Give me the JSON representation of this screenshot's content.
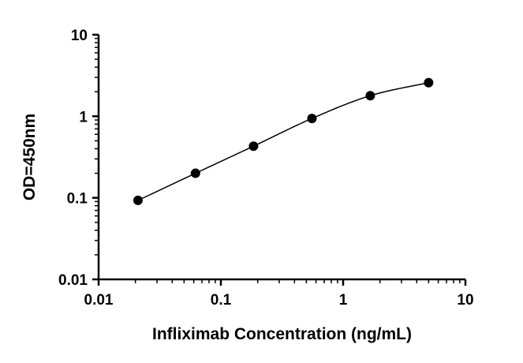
{
  "chart_data": {
    "type": "scatter",
    "title": "",
    "xlabel": "Infliximab Concentration (ng/mL)",
    "ylabel": "OD=450nm",
    "x_scale": "log",
    "y_scale": "log",
    "xlim": [
      0.01,
      10
    ],
    "ylim": [
      0.01,
      10
    ],
    "x_ticks": [
      "0.01",
      "0.1",
      "1",
      "10"
    ],
    "y_ticks": [
      "0.01",
      "0.1",
      "1",
      "10"
    ],
    "grid": false,
    "legend": "none",
    "fit_curve": true,
    "colors": {
      "points": "#000000",
      "curve": "#000000",
      "axes": "#000000"
    },
    "series": [
      {
        "points": [
          {
            "x": 0.021,
            "y": 0.093
          },
          {
            "x": 0.062,
            "y": 0.2
          },
          {
            "x": 0.185,
            "y": 0.43
          },
          {
            "x": 0.556,
            "y": 0.94
          },
          {
            "x": 1.667,
            "y": 1.79
          },
          {
            "x": 5.0,
            "y": 2.58
          }
        ]
      }
    ]
  }
}
